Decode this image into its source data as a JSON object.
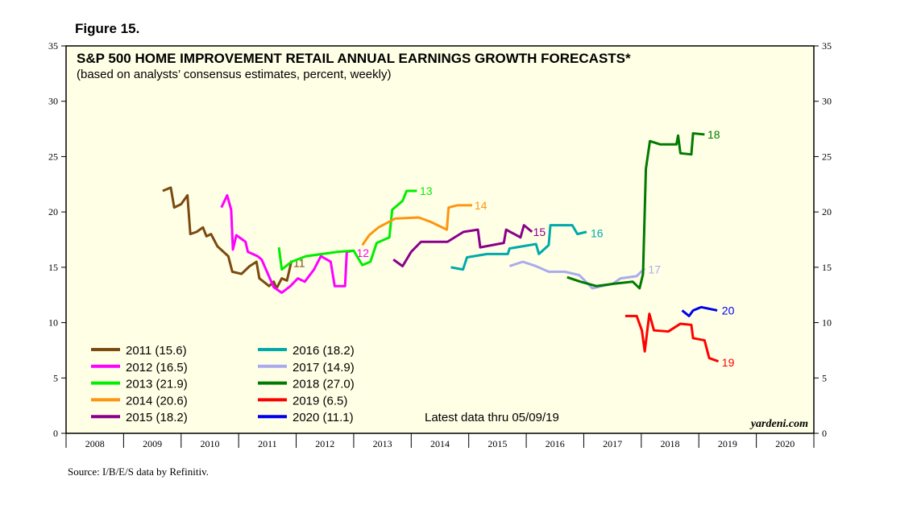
{
  "figure_label": "Figure 15.",
  "source": "Source: I/B/E/S data by Refinitiv.",
  "chart_data": {
    "type": "line",
    "title": "S&P 500 HOME IMPROVEMENT RETAIL ANNUAL EARNINGS GROWTH FORECASTS*",
    "subtitle": "(based on analysts’ consensus estimates, percent, weekly)",
    "annotation": "Latest data thru 05/09/19",
    "watermark": "yardeni.com",
    "xlim": [
      2008,
      2021
    ],
    "ylim": [
      0,
      35
    ],
    "x_ticks": [
      "2008",
      "2009",
      "2010",
      "2011",
      "2012",
      "2013",
      "2014",
      "2015",
      "2016",
      "2017",
      "2018",
      "2019",
      "2020"
    ],
    "y_ticks": [
      "0",
      "5",
      "10",
      "15",
      "20",
      "25",
      "30",
      "35"
    ],
    "legend": "bottom-left",
    "series": [
      {
        "name": "2011 (15.6)",
        "label": "11",
        "color": "#7a4a10",
        "label_at": [
          2011.95,
          15.4
        ],
        "points": [
          [
            2009.68,
            21.9
          ],
          [
            2009.82,
            22.2
          ],
          [
            2009.88,
            20.4
          ],
          [
            2010.0,
            20.7
          ],
          [
            2010.11,
            21.5
          ],
          [
            2010.16,
            18.0
          ],
          [
            2010.27,
            18.2
          ],
          [
            2010.38,
            18.6
          ],
          [
            2010.44,
            17.8
          ],
          [
            2010.52,
            18.0
          ],
          [
            2010.63,
            16.9
          ],
          [
            2010.82,
            16.0
          ],
          [
            2010.89,
            14.6
          ],
          [
            2011.05,
            14.4
          ],
          [
            2011.19,
            15.1
          ],
          [
            2011.31,
            15.5
          ],
          [
            2011.36,
            14.0
          ],
          [
            2011.53,
            13.3
          ],
          [
            2011.61,
            13.7
          ],
          [
            2011.66,
            13.1
          ],
          [
            2011.75,
            14.0
          ],
          [
            2011.84,
            13.8
          ],
          [
            2011.92,
            15.6
          ]
        ]
      },
      {
        "name": "2012 (16.5)",
        "label": "12",
        "color": "#ff00ff",
        "label_at": [
          2013.05,
          16.3
        ],
        "points": [
          [
            2010.7,
            20.4
          ],
          [
            2010.8,
            21.5
          ],
          [
            2010.87,
            20.2
          ],
          [
            2010.9,
            16.6
          ],
          [
            2010.96,
            17.9
          ],
          [
            2011.12,
            17.3
          ],
          [
            2011.16,
            16.4
          ],
          [
            2011.33,
            16.0
          ],
          [
            2011.4,
            15.7
          ],
          [
            2011.61,
            13.2
          ],
          [
            2011.75,
            12.7
          ],
          [
            2011.9,
            13.3
          ],
          [
            2012.03,
            14.0
          ],
          [
            2012.15,
            13.7
          ],
          [
            2012.31,
            14.8
          ],
          [
            2012.43,
            16.0
          ],
          [
            2012.6,
            15.5
          ],
          [
            2012.67,
            13.3
          ],
          [
            2012.85,
            13.3
          ],
          [
            2012.88,
            16.4
          ],
          [
            2013.0,
            16.5
          ]
        ]
      },
      {
        "name": "2013 (21.9)",
        "label": "13",
        "color": "#00ee00",
        "label_at": [
          2014.15,
          21.9
        ],
        "points": [
          [
            2011.7,
            16.8
          ],
          [
            2011.75,
            14.8
          ],
          [
            2011.92,
            15.5
          ],
          [
            2012.17,
            16.0
          ],
          [
            2012.45,
            16.2
          ],
          [
            2012.73,
            16.4
          ],
          [
            2013.0,
            16.5
          ],
          [
            2013.15,
            15.2
          ],
          [
            2013.29,
            15.5
          ],
          [
            2013.4,
            17.2
          ],
          [
            2013.62,
            17.7
          ],
          [
            2013.67,
            20.2
          ],
          [
            2013.85,
            21.0
          ],
          [
            2013.92,
            21.9
          ],
          [
            2014.1,
            21.9
          ]
        ]
      },
      {
        "name": "2014 (20.6)",
        "label": "14",
        "color": "#ff9410",
        "label_at": [
          2015.1,
          20.6
        ],
        "points": [
          [
            2013.15,
            17.0
          ],
          [
            2013.27,
            17.9
          ],
          [
            2013.43,
            18.6
          ],
          [
            2013.72,
            19.4
          ],
          [
            2014.13,
            19.5
          ],
          [
            2014.34,
            19.1
          ],
          [
            2014.62,
            18.4
          ],
          [
            2014.65,
            20.4
          ],
          [
            2014.8,
            20.6
          ],
          [
            2015.06,
            20.6
          ]
        ]
      },
      {
        "name": "2015 (18.2)",
        "label": "15",
        "color": "#8b008b",
        "label_at": [
          2016.12,
          18.2
        ],
        "points": [
          [
            2013.69,
            15.7
          ],
          [
            2013.85,
            15.1
          ],
          [
            2014.0,
            16.4
          ],
          [
            2014.17,
            17.3
          ],
          [
            2014.63,
            17.3
          ],
          [
            2014.91,
            18.2
          ],
          [
            2015.16,
            18.4
          ],
          [
            2015.2,
            16.8
          ],
          [
            2015.61,
            17.2
          ],
          [
            2015.65,
            18.4
          ],
          [
            2015.9,
            17.7
          ],
          [
            2015.96,
            18.8
          ],
          [
            2016.1,
            18.2
          ]
        ]
      },
      {
        "name": "2016 (18.2)",
        "label": "16",
        "color": "#00aaaa",
        "label_at": [
          2017.12,
          18.1
        ],
        "points": [
          [
            2014.69,
            15.0
          ],
          [
            2014.9,
            14.8
          ],
          [
            2014.97,
            15.9
          ],
          [
            2015.32,
            16.2
          ],
          [
            2015.68,
            16.2
          ],
          [
            2015.71,
            16.7
          ],
          [
            2016.17,
            17.1
          ],
          [
            2016.22,
            16.2
          ],
          [
            2016.39,
            17.0
          ],
          [
            2016.42,
            18.8
          ],
          [
            2016.8,
            18.8
          ],
          [
            2016.89,
            18.0
          ],
          [
            2017.05,
            18.2
          ]
        ]
      },
      {
        "name": "2017 (14.9)",
        "label": "17",
        "color": "#aaaaee",
        "label_at": [
          2018.12,
          14.8
        ],
        "points": [
          [
            2015.71,
            15.1
          ],
          [
            2015.94,
            15.5
          ],
          [
            2016.17,
            15.1
          ],
          [
            2016.39,
            14.6
          ],
          [
            2016.67,
            14.6
          ],
          [
            2016.92,
            14.3
          ],
          [
            2017.15,
            13.1
          ],
          [
            2017.5,
            13.5
          ],
          [
            2017.64,
            14.0
          ],
          [
            2017.92,
            14.2
          ],
          [
            2018.06,
            14.9
          ]
        ]
      },
      {
        "name": "2018 (27.0)",
        "label": "18",
        "color": "#007a00",
        "label_at": [
          2019.15,
          27.0
        ],
        "points": [
          [
            2016.71,
            14.1
          ],
          [
            2016.94,
            13.7
          ],
          [
            2017.22,
            13.3
          ],
          [
            2017.5,
            13.5
          ],
          [
            2017.85,
            13.7
          ],
          [
            2017.97,
            13.1
          ],
          [
            2018.03,
            14.4
          ],
          [
            2018.08,
            23.9
          ],
          [
            2018.15,
            26.4
          ],
          [
            2018.33,
            26.1
          ],
          [
            2018.61,
            26.1
          ],
          [
            2018.64,
            26.9
          ],
          [
            2018.68,
            25.3
          ],
          [
            2018.87,
            25.2
          ],
          [
            2018.9,
            27.1
          ],
          [
            2019.1,
            27.0
          ]
        ]
      },
      {
        "name": "2019 (6.5)",
        "label": "19",
        "color": "#ff0000",
        "label_at": [
          2019.4,
          6.4
        ],
        "points": [
          [
            2017.72,
            10.6
          ],
          [
            2017.92,
            10.6
          ],
          [
            2018.01,
            9.3
          ],
          [
            2018.06,
            7.4
          ],
          [
            2018.14,
            10.8
          ],
          [
            2018.22,
            9.3
          ],
          [
            2018.47,
            9.2
          ],
          [
            2018.68,
            9.9
          ],
          [
            2018.87,
            9.8
          ],
          [
            2018.9,
            8.6
          ],
          [
            2019.1,
            8.4
          ],
          [
            2019.18,
            6.8
          ],
          [
            2019.34,
            6.5
          ]
        ]
      },
      {
        "name": "2020 (11.1)",
        "label": "20",
        "color": "#0000ee",
        "label_at": [
          2019.4,
          11.1
        ],
        "points": [
          [
            2018.71,
            11.1
          ],
          [
            2018.83,
            10.6
          ],
          [
            2018.9,
            11.1
          ],
          [
            2019.04,
            11.4
          ],
          [
            2019.32,
            11.1
          ]
        ]
      }
    ]
  }
}
